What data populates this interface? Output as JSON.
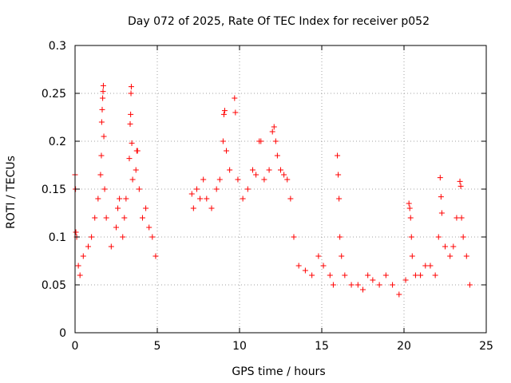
{
  "chart_data": {
    "type": "scatter",
    "title": "Day 072 of 2025, Rate Of TEC Index for receiver p052",
    "xlabel": "GPS time / hours",
    "ylabel": "ROTI / TECUs",
    "xlim": [
      0,
      25
    ],
    "ylim": [
      0,
      0.3
    ],
    "xticks": [
      0,
      5,
      10,
      15,
      20,
      25
    ],
    "yticks": [
      0,
      0.05,
      0.1,
      0.15,
      0.2,
      0.25,
      0.3
    ],
    "xtick_labels": [
      "0",
      "5",
      "10",
      "15",
      "20",
      "25"
    ],
    "ytick_labels": [
      "0",
      "0.05",
      "0.1",
      "0.15",
      "0.2",
      "0.25",
      "0.3"
    ],
    "grid": true,
    "marker": "+",
    "color": "#ff0000",
    "series": [
      {
        "points": [
          [
            0.0,
            0.165
          ],
          [
            0.03,
            0.15
          ],
          [
            0.05,
            0.105
          ],
          [
            0.1,
            0.1
          ],
          [
            0.2,
            0.07
          ],
          [
            0.3,
            0.06
          ],
          [
            0.5,
            0.08
          ],
          [
            0.8,
            0.09
          ],
          [
            1.0,
            0.1
          ],
          [
            1.2,
            0.12
          ],
          [
            1.4,
            0.14
          ],
          [
            1.55,
            0.165
          ],
          [
            1.6,
            0.185
          ],
          [
            1.62,
            0.22
          ],
          [
            1.65,
            0.233
          ],
          [
            1.68,
            0.245
          ],
          [
            1.7,
            0.252
          ],
          [
            1.72,
            0.258
          ],
          [
            1.75,
            0.205
          ],
          [
            1.8,
            0.15
          ],
          [
            1.9,
            0.12
          ],
          [
            2.2,
            0.09
          ],
          [
            2.5,
            0.11
          ],
          [
            2.6,
            0.13
          ],
          [
            2.7,
            0.14
          ],
          [
            2.9,
            0.1
          ],
          [
            3.0,
            0.12
          ],
          [
            3.1,
            0.14
          ],
          [
            3.3,
            0.182
          ],
          [
            3.35,
            0.218
          ],
          [
            3.38,
            0.228
          ],
          [
            3.4,
            0.25
          ],
          [
            3.42,
            0.257
          ],
          [
            3.45,
            0.198
          ],
          [
            3.5,
            0.16
          ],
          [
            3.7,
            0.17
          ],
          [
            3.75,
            0.19
          ],
          [
            3.8,
            0.19
          ],
          [
            3.9,
            0.15
          ],
          [
            4.1,
            0.12
          ],
          [
            4.3,
            0.13
          ],
          [
            4.5,
            0.11
          ],
          [
            4.7,
            0.1
          ],
          [
            4.9,
            0.08
          ],
          [
            7.1,
            0.145
          ],
          [
            7.2,
            0.13
          ],
          [
            7.4,
            0.15
          ],
          [
            7.6,
            0.14
          ],
          [
            7.8,
            0.16
          ],
          [
            8.0,
            0.14
          ],
          [
            8.3,
            0.13
          ],
          [
            8.6,
            0.15
          ],
          [
            8.8,
            0.16
          ],
          [
            9.0,
            0.2
          ],
          [
            9.05,
            0.228
          ],
          [
            9.1,
            0.232
          ],
          [
            9.2,
            0.19
          ],
          [
            9.4,
            0.17
          ],
          [
            9.7,
            0.245
          ],
          [
            9.75,
            0.23
          ],
          [
            9.9,
            0.16
          ],
          [
            10.2,
            0.14
          ],
          [
            10.5,
            0.15
          ],
          [
            10.8,
            0.17
          ],
          [
            11.0,
            0.165
          ],
          [
            11.2,
            0.2
          ],
          [
            11.3,
            0.2
          ],
          [
            11.5,
            0.16
          ],
          [
            11.8,
            0.17
          ],
          [
            12.0,
            0.21
          ],
          [
            12.1,
            0.215
          ],
          [
            12.2,
            0.2
          ],
          [
            12.3,
            0.185
          ],
          [
            12.5,
            0.17
          ],
          [
            12.7,
            0.165
          ],
          [
            12.9,
            0.16
          ],
          [
            13.1,
            0.14
          ],
          [
            13.3,
            0.1
          ],
          [
            13.6,
            0.07
          ],
          [
            14.0,
            0.065
          ],
          [
            14.4,
            0.06
          ],
          [
            14.8,
            0.08
          ],
          [
            15.1,
            0.07
          ],
          [
            15.5,
            0.06
          ],
          [
            15.7,
            0.05
          ],
          [
            15.95,
            0.185
          ],
          [
            16.0,
            0.165
          ],
          [
            16.05,
            0.14
          ],
          [
            16.1,
            0.1
          ],
          [
            16.2,
            0.08
          ],
          [
            16.4,
            0.06
          ],
          [
            16.8,
            0.05
          ],
          [
            17.2,
            0.05
          ],
          [
            17.5,
            0.045
          ],
          [
            17.8,
            0.06
          ],
          [
            18.1,
            0.055
          ],
          [
            18.5,
            0.05
          ],
          [
            18.9,
            0.06
          ],
          [
            19.3,
            0.05
          ],
          [
            19.7,
            0.04
          ],
          [
            20.1,
            0.055
          ],
          [
            20.3,
            0.135
          ],
          [
            20.35,
            0.13
          ],
          [
            20.4,
            0.12
          ],
          [
            20.45,
            0.1
          ],
          [
            20.5,
            0.08
          ],
          [
            20.7,
            0.06
          ],
          [
            21.0,
            0.06
          ],
          [
            21.3,
            0.07
          ],
          [
            21.6,
            0.07
          ],
          [
            21.9,
            0.06
          ],
          [
            22.1,
            0.1
          ],
          [
            22.2,
            0.162
          ],
          [
            22.25,
            0.142
          ],
          [
            22.3,
            0.125
          ],
          [
            22.5,
            0.09
          ],
          [
            22.8,
            0.08
          ],
          [
            23.0,
            0.09
          ],
          [
            23.2,
            0.12
          ],
          [
            23.4,
            0.158
          ],
          [
            23.45,
            0.153
          ],
          [
            23.5,
            0.12
          ],
          [
            23.6,
            0.1
          ],
          [
            23.8,
            0.08
          ],
          [
            24.0,
            0.05
          ]
        ]
      }
    ]
  }
}
